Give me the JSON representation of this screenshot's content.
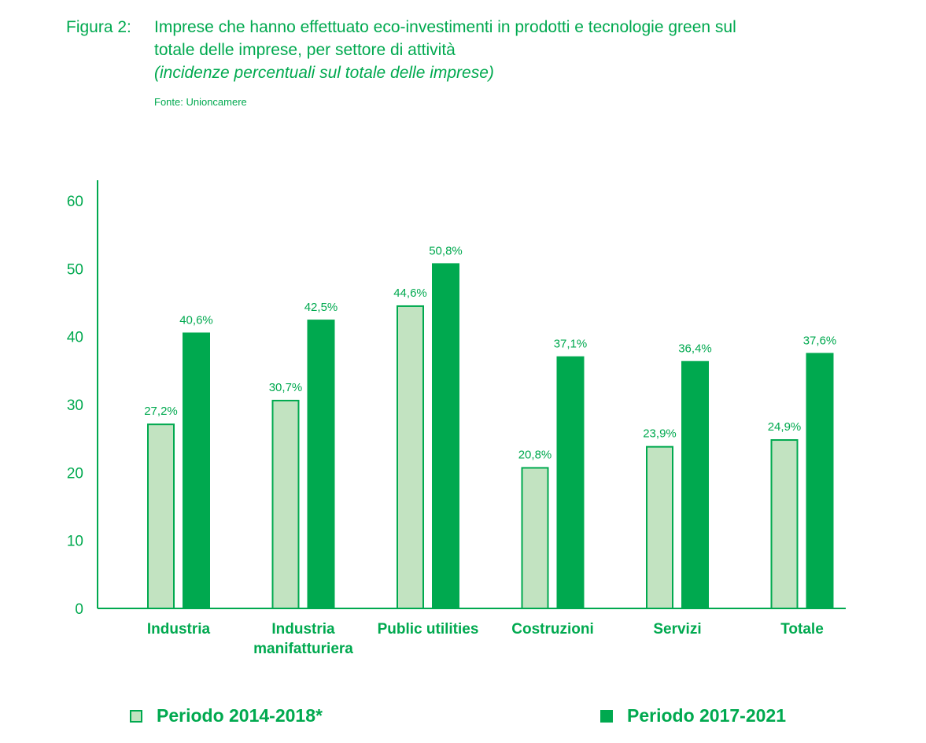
{
  "header": {
    "figure_label": "Figura 2:",
    "title_line1": "Imprese che hanno effettuato eco-investimenti in prodotti e tecnologie green sul",
    "title_line2": "totale delle imprese, per settore di attività",
    "subtitle": "(incidenze percentuali sul totale delle imprese)",
    "source": "Fonte: Unioncamere"
  },
  "colors": {
    "accent": "#00a94f",
    "light_fill": "#c2e3c1",
    "light_stroke": "#00a94f",
    "dark_fill": "#00a94f"
  },
  "chart_data": {
    "type": "bar",
    "categories": [
      [
        "Industria"
      ],
      [
        "Industria",
        "manifatturiera"
      ],
      [
        "Public utilities"
      ],
      [
        "Costruzioni"
      ],
      [
        "Servizi"
      ],
      [
        "Totale"
      ]
    ],
    "series": [
      {
        "name": "Periodo 2014-2018*",
        "values": [
          27.2,
          30.7,
          44.6,
          20.8,
          23.9,
          24.9
        ],
        "labels": [
          "27,2%",
          "30,7%",
          "44,6%",
          "20,8%",
          "23,9%",
          "24,9%"
        ]
      },
      {
        "name": "Periodo 2017-2021",
        "values": [
          40.6,
          42.5,
          50.8,
          37.1,
          36.4,
          37.6
        ],
        "labels": [
          "40,6%",
          "42,5%",
          "50,8%",
          "37,1%",
          "36,4%",
          "37,6%"
        ]
      }
    ],
    "ylim": [
      0,
      60
    ],
    "yticks": [
      0,
      10,
      20,
      30,
      40,
      50,
      60
    ],
    "grid": false,
    "legend_position": "bottom"
  },
  "legend": {
    "item1": "Periodo 2014-2018*",
    "item2": "Periodo 2017-2021"
  }
}
